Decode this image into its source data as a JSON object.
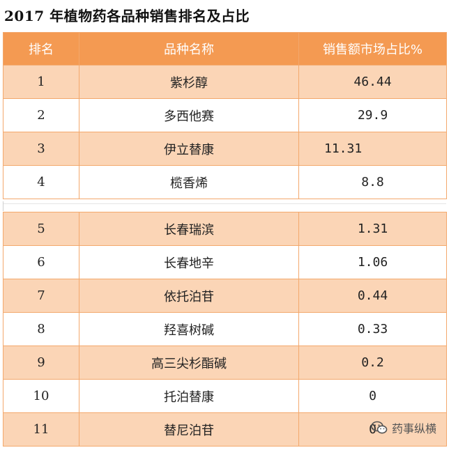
{
  "title": "2017 年植物药各品种销售排名及占比",
  "table": {
    "headers": {
      "rank": "排名",
      "name": "品种名称",
      "share": "销售额市场占比%"
    },
    "rows": [
      {
        "rank": "1",
        "name": "紫杉醇",
        "share": "46.44"
      },
      {
        "rank": "2",
        "name": "多西他赛",
        "share": "29.9"
      },
      {
        "rank": "3",
        "name": "伊立替康",
        "share": "11.31"
      },
      {
        "rank": "4",
        "name": "榄香烯",
        "share": "8.8"
      },
      {
        "rank": "5",
        "name": "长春瑞滨",
        "share": "1.31"
      },
      {
        "rank": "6",
        "name": "长春地辛",
        "share": "1.06"
      },
      {
        "rank": "7",
        "name": "依托泊苷",
        "share": "0.44"
      },
      {
        "rank": "8",
        "name": "羟喜树碱",
        "share": "0.33"
      },
      {
        "rank": "9",
        "name": "高三尖杉酯碱",
        "share": "0.2"
      },
      {
        "rank": "10",
        "name": "托泊替康",
        "share": "0"
      },
      {
        "rank": "11",
        "name": "替尼泊苷",
        "share": "0"
      }
    ]
  },
  "watermark": {
    "text": "药事纵横",
    "icon": "wechat-icon"
  }
}
